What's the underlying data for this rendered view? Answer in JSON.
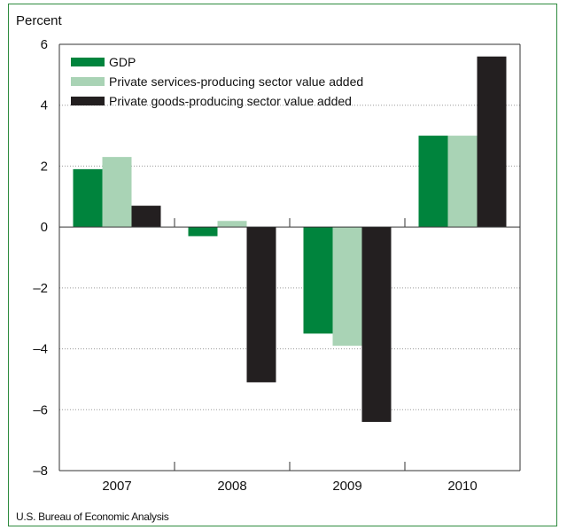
{
  "chart_data": {
    "type": "bar",
    "ylabel": "Percent",
    "ylim": [
      -8,
      6
    ],
    "yticks": [
      6,
      4,
      2,
      0,
      -2,
      -4,
      -6,
      -8
    ],
    "ytick_labels": [
      "6",
      "4",
      "2",
      "0",
      "–2",
      "–4",
      "–6",
      "–8"
    ],
    "categories": [
      "2007",
      "2008",
      "2009",
      "2010"
    ],
    "series": [
      {
        "name": "GDP",
        "color": "#00843d",
        "values": [
          1.9,
          -0.3,
          -3.5,
          3.0
        ]
      },
      {
        "name": "Private services-producing sector value added",
        "color": "#a9d3b5",
        "values": [
          2.3,
          0.2,
          -3.9,
          3.0
        ]
      },
      {
        "name": "Private goods-producing sector value added",
        "color": "#231f20",
        "values": [
          0.7,
          -5.1,
          -6.4,
          5.6
        ]
      }
    ],
    "grid": true,
    "legend_position": "top-left",
    "source": "U.S. Bureau of Economic Analysis"
  }
}
